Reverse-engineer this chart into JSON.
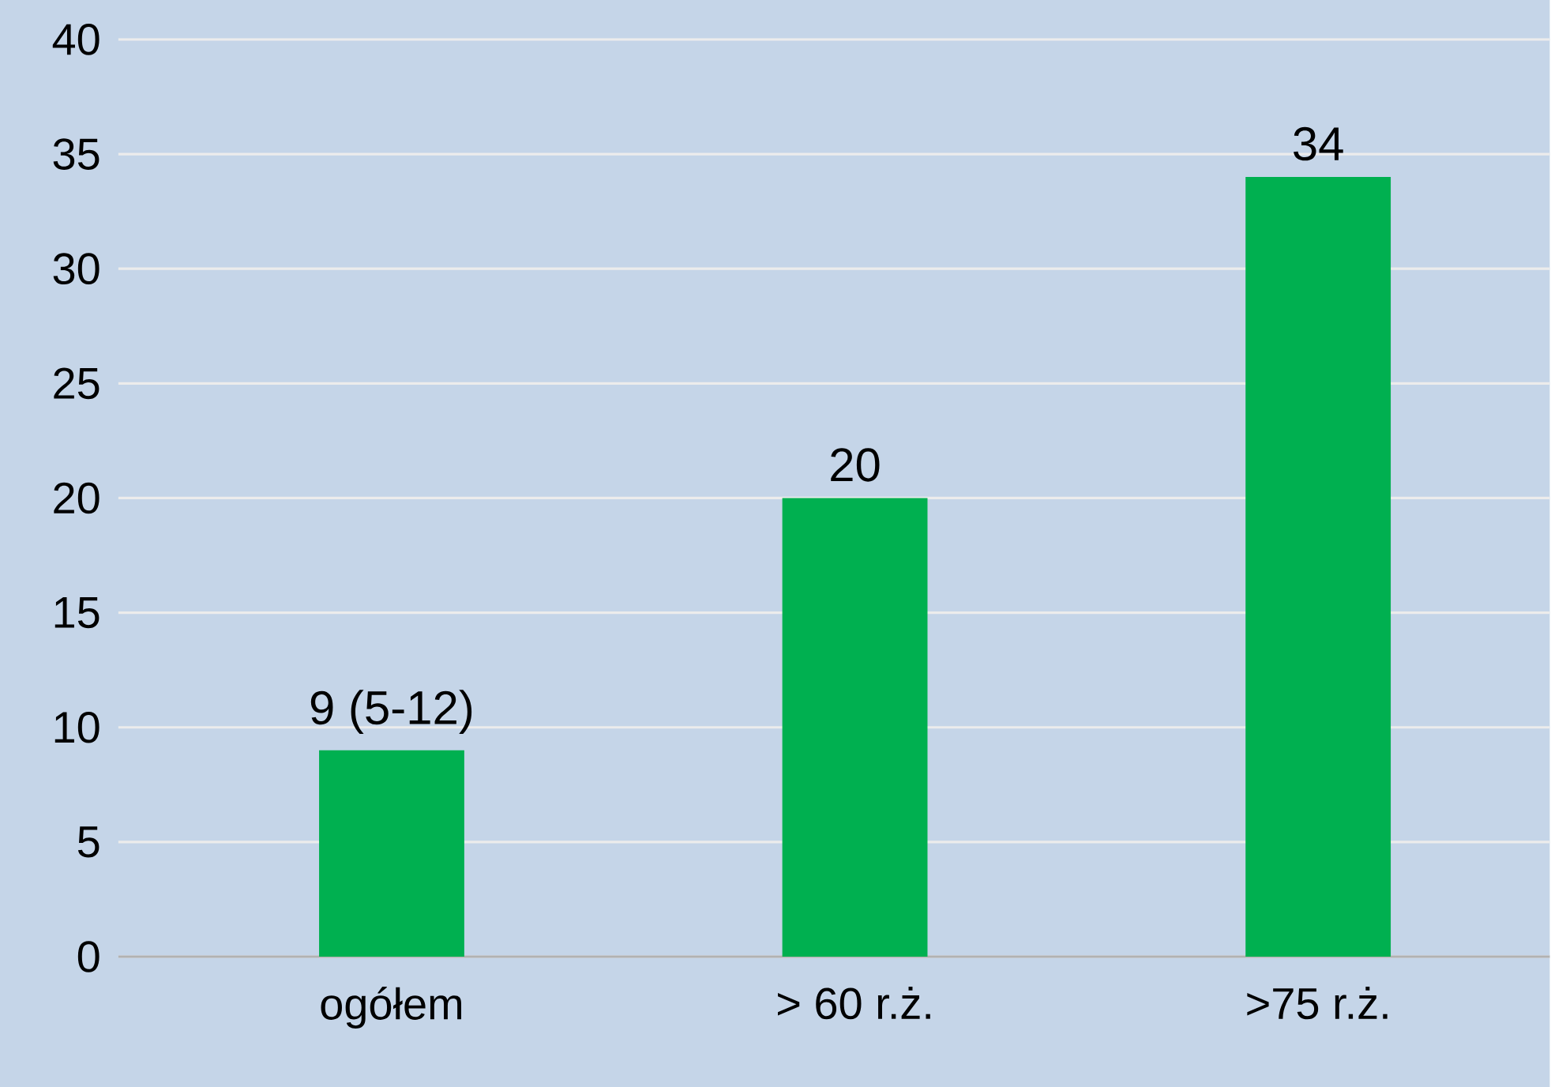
{
  "chart_data": {
    "type": "bar",
    "categories": [
      "ogółem",
      "> 60 r.ż.",
      ">75 r.ż."
    ],
    "values": [
      9,
      20,
      34
    ],
    "value_labels": [
      "9 (5-12)",
      "20",
      "34"
    ],
    "color": "#00b050",
    "ylim": [
      0,
      40
    ],
    "yticks": [
      0,
      5,
      10,
      15,
      20,
      25,
      30,
      35,
      40
    ],
    "grid": "y"
  }
}
